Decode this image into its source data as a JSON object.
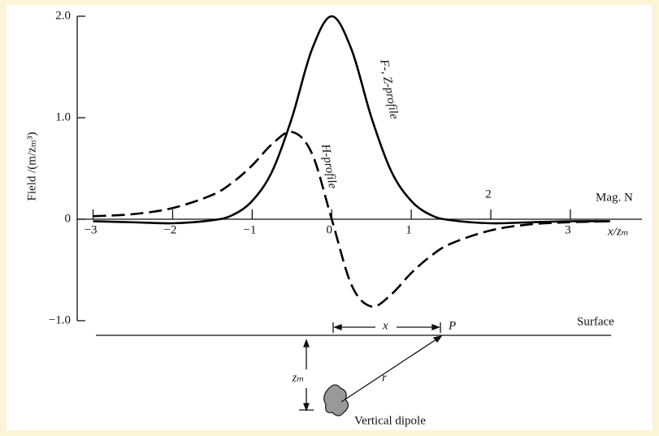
{
  "chart_data": {
    "type": "line",
    "ylabel": "Field /(m/zₘ³)",
    "xlabel": "x/zₘ",
    "top_axis_label": "Mag. N",
    "x": [
      -3,
      -2.5,
      -2,
      -1.5,
      -1.25,
      -1,
      -0.75,
      -0.5,
      -0.25,
      0,
      0.25,
      0.5,
      0.75,
      1,
      1.25,
      1.5,
      2,
      2.5,
      3,
      3.5
    ],
    "series": [
      {
        "name": "F-, Z-profile",
        "color": "#000000",
        "dash": false,
        "values": [
          -0.02,
          -0.03,
          -0.04,
          -0.01,
          0.04,
          0.18,
          0.47,
          1.0,
          1.67,
          2.0,
          1.67,
          1.0,
          0.47,
          0.18,
          0.04,
          -0.01,
          -0.04,
          -0.03,
          -0.02,
          -0.02
        ]
      },
      {
        "name": "H-profile",
        "color": "#000000",
        "dash": true,
        "values": [
          0.03,
          0.05,
          0.11,
          0.24,
          0.36,
          0.53,
          0.74,
          0.86,
          0.65,
          0,
          -0.65,
          -0.86,
          -0.74,
          -0.53,
          -0.36,
          -0.24,
          -0.11,
          -0.05,
          -0.03,
          -0.02
        ]
      }
    ],
    "xlim": [
      -3.2,
      3.9
    ],
    "ylim": [
      -1,
      2
    ],
    "xticks": [
      {
        "value": -3,
        "label": "−3"
      },
      {
        "value": -2,
        "label": "−2"
      },
      {
        "value": -1,
        "label": "−1"
      },
      0,
      1,
      2,
      3
    ],
    "yticks": [
      {
        "value": -1,
        "label": "−1.0"
      },
      0,
      {
        "value": 1,
        "label": "1.0"
      },
      {
        "value": 2,
        "label": "2.0"
      }
    ]
  },
  "diagram": {
    "surface": "Surface",
    "point": "P",
    "distance": "x",
    "depth": "zₘ",
    "radius": "r",
    "source": "Vertical dipole"
  }
}
